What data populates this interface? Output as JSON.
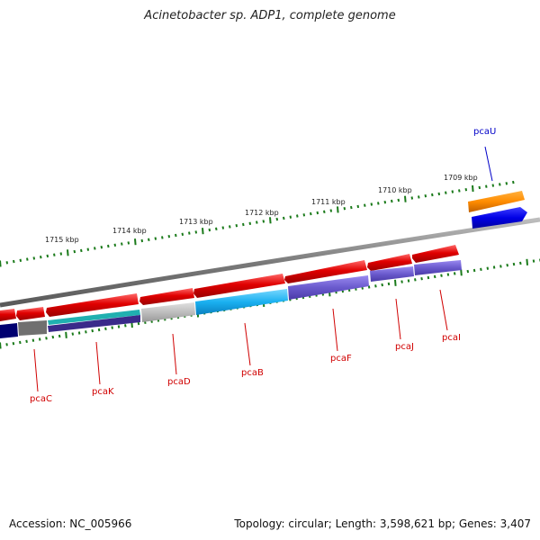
{
  "title": "Acinetobacter sp. ADP1, complete genome",
  "footer": {
    "accession": "Accession: NC_005966",
    "topology": "Topology: circular; Length: 3,598,621 bp; Genes: 3,407"
  },
  "colors": {
    "forward_gene": "#e00000",
    "backbone": "#888888",
    "tick": "#1a7a1a",
    "label_red": "#d00000",
    "label_blue": "#0000c8",
    "pcaU_orange": "#ff8c00",
    "pcaU_blue": "#0000e6",
    "cog_teal": "#20b0b0",
    "cog_navy": "#3a2a8a",
    "cog_lightgray": "#bdbdbd",
    "cog_cyan": "#1ab0f0",
    "cog_purple": "#6a5acd",
    "cog_darkgray": "#707070",
    "cog_darkblue": "#000070"
  },
  "scale_labels": [
    "1715 kbp",
    "1714 kbp",
    "1713 kbp",
    "1712 kbp",
    "1711 kbp",
    "1710 kbp",
    "1709 kbp"
  ],
  "gene_labels": [
    {
      "name": "pcaC",
      "color": "red"
    },
    {
      "name": "pcaK",
      "color": "red"
    },
    {
      "name": "pcaD",
      "color": "red"
    },
    {
      "name": "pcaB",
      "color": "red"
    },
    {
      "name": "pcaF",
      "color": "red"
    },
    {
      "name": "pcaJ",
      "color": "red"
    },
    {
      "name": "pcaI",
      "color": "red"
    },
    {
      "name": "pcaU",
      "color": "blue"
    }
  ]
}
